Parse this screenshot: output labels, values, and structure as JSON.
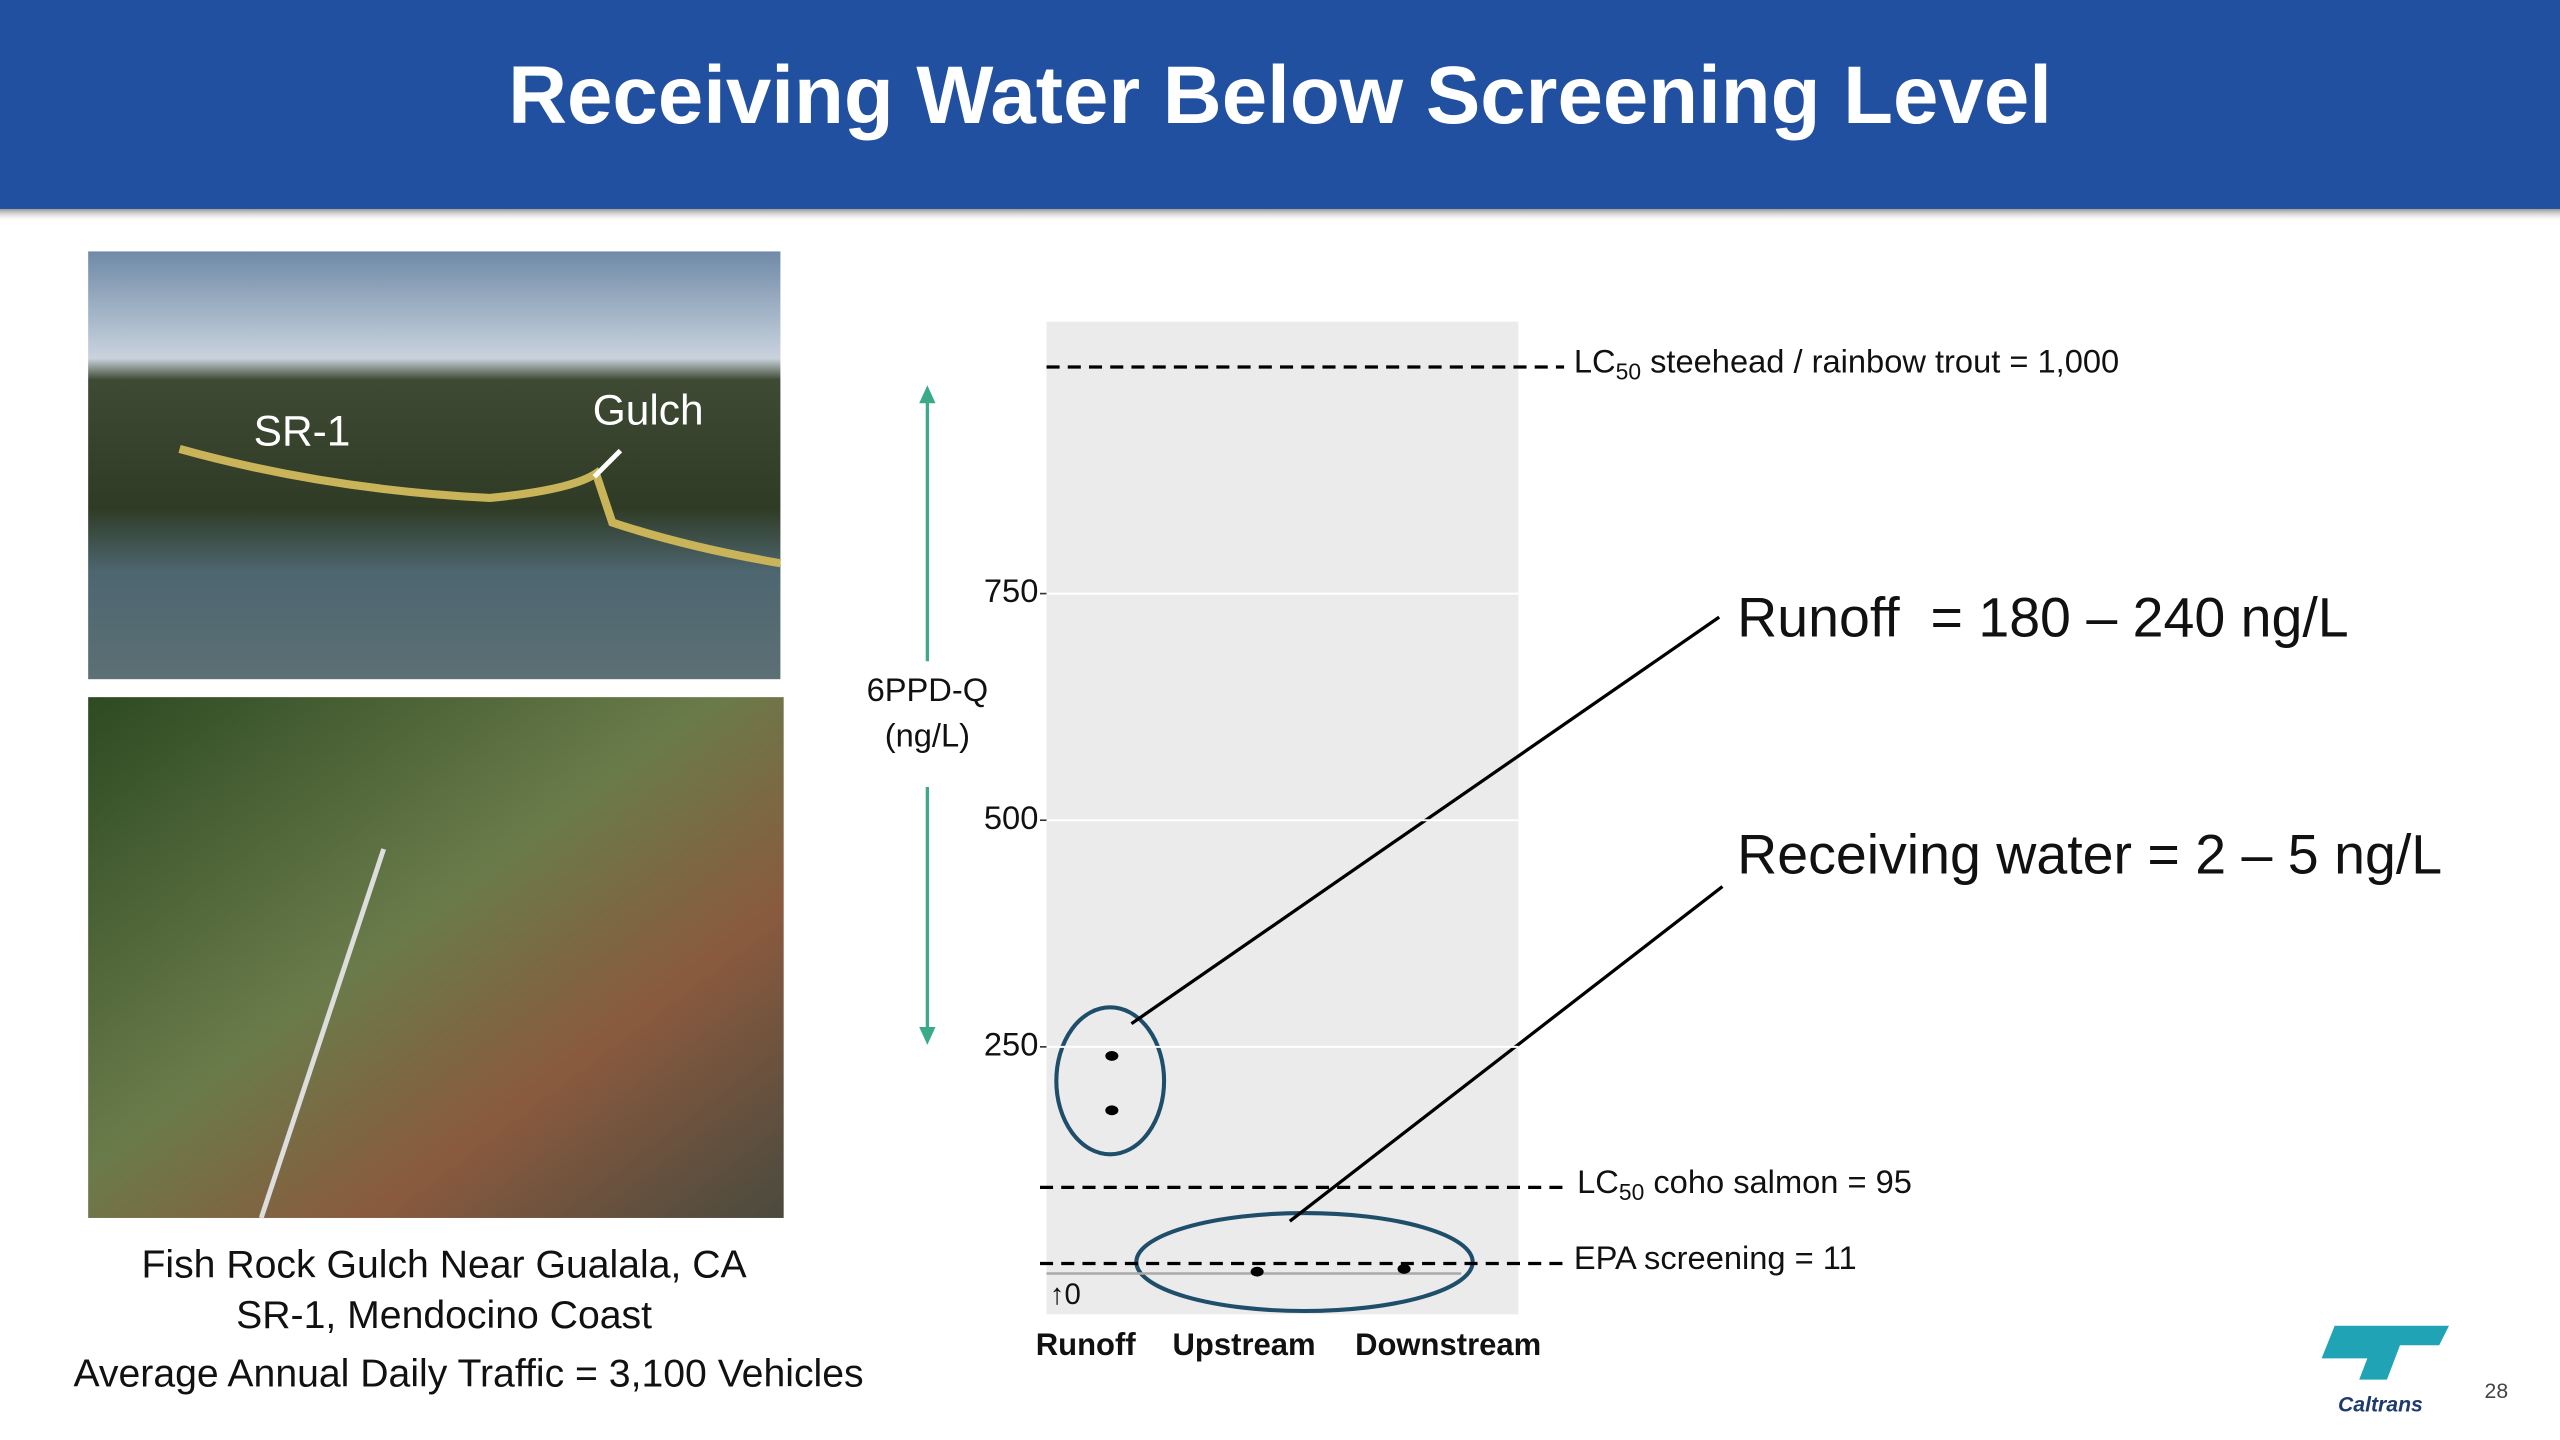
{
  "header": {
    "title": "Receiving Water Below Screening Level"
  },
  "photos": {
    "labels": [
      "SR-1",
      "Gulch"
    ]
  },
  "caption": [
    "Fish Rock Gulch Near Gualala, CA",
    "SR-1, Mendocino Coast",
    "Average Annual Daily Traffic = 3,100 Vehicles"
  ],
  "chart_data": {
    "type": "strip",
    "ylabel": [
      "6PPD-Q",
      "(ng/L)"
    ],
    "categories": [
      "Runoff",
      "Upstream",
      "Downstream"
    ],
    "series": [
      {
        "values": [
          240,
          180
        ],
        "color": "#000000"
      },
      {
        "values": [
          2
        ],
        "color": "#000000"
      },
      {
        "values": [
          5
        ],
        "color": "#000000"
      }
    ],
    "ylim": [
      -45,
      1050
    ],
    "yticks": [
      250,
      500,
      750
    ],
    "grid": true,
    "zero_note": "↑0",
    "reference_lines": [
      {
        "value": 1000,
        "label": "LC",
        "label_sub": "50",
        "label_rest": " steehead / rainbow trout = 1,000"
      },
      {
        "value": 95,
        "label": "LC",
        "label_sub": "50",
        "label_rest": " coho salmon = 95"
      },
      {
        "value": 11,
        "label": "EPA screening = 11"
      }
    ],
    "callouts": [
      "Runoff  = 180 – 240 ng/L",
      "Receiving water = 2 – 5 ng/L"
    ]
  },
  "footer": {
    "logo": "Caltrans",
    "page": "28"
  }
}
